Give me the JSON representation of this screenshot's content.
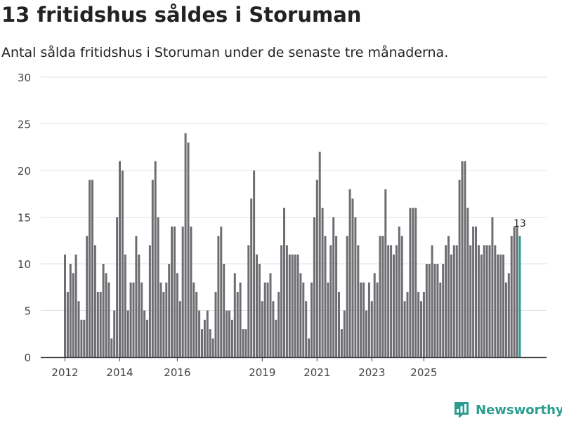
{
  "title": "13 fritidshus såldes i Storuman",
  "subtitle": "Antal sålda fritidshus i Storuman under de senaste tre månaderna.",
  "brand": "Newsworthy",
  "colors": {
    "bar": "#6e6d72",
    "highlight": "#2a9d8f",
    "grid": "#e2e2e2",
    "axis": "#444444"
  },
  "chart_data": {
    "type": "bar",
    "title": "13 fritidshus såldes i Storuman",
    "xlabel": "",
    "ylabel": "",
    "ylim": [
      0,
      30
    ],
    "yticks": [
      "0",
      "5",
      "10",
      "15",
      "20",
      "25",
      "30"
    ],
    "xticks": [
      {
        "label": "2012",
        "index": 0
      },
      {
        "label": "2014",
        "index": 20
      },
      {
        "label": "2016",
        "index": 41
      },
      {
        "label": "2019",
        "index": 72
      },
      {
        "label": "2021",
        "index": 92
      },
      {
        "label": "2023",
        "index": 112
      },
      {
        "label": "2025",
        "index": 131
      }
    ],
    "start": "2012",
    "values": [
      11,
      7,
      10,
      9,
      11,
      6,
      4,
      4,
      13,
      19,
      19,
      12,
      7,
      7,
      10,
      9,
      8,
      2,
      5,
      15,
      21,
      20,
      11,
      5,
      8,
      8,
      13,
      11,
      8,
      5,
      4,
      12,
      19,
      21,
      15,
      8,
      7,
      8,
      10,
      14,
      14,
      9,
      6,
      14,
      24,
      23,
      14,
      8,
      7,
      5,
      3,
      4,
      5,
      3,
      2,
      7,
      13,
      14,
      10,
      5,
      5,
      4,
      9,
      7,
      8,
      3,
      3,
      12,
      17,
      20,
      11,
      10,
      6,
      8,
      8,
      9,
      6,
      4,
      7,
      12,
      16,
      12,
      11,
      11,
      11,
      11,
      9,
      8,
      6,
      2,
      8,
      15,
      19,
      22,
      16,
      13,
      8,
      12,
      15,
      13,
      7,
      3,
      5,
      13,
      18,
      17,
      15,
      12,
      8,
      8,
      5,
      8,
      6,
      9,
      8,
      13,
      13,
      18,
      12,
      12,
      11,
      12,
      14,
      13,
      6,
      7,
      16,
      16,
      16,
      7,
      6,
      7,
      10,
      10,
      12,
      10,
      10,
      8,
      10,
      12,
      13,
      11,
      12,
      12,
      19,
      21,
      21,
      16,
      12,
      14,
      14,
      12,
      11,
      12,
      12,
      12,
      15,
      12,
      11,
      11,
      11,
      8,
      9,
      13,
      14,
      14,
      13
    ],
    "annotation": {
      "index": 166,
      "label": "13"
    }
  }
}
